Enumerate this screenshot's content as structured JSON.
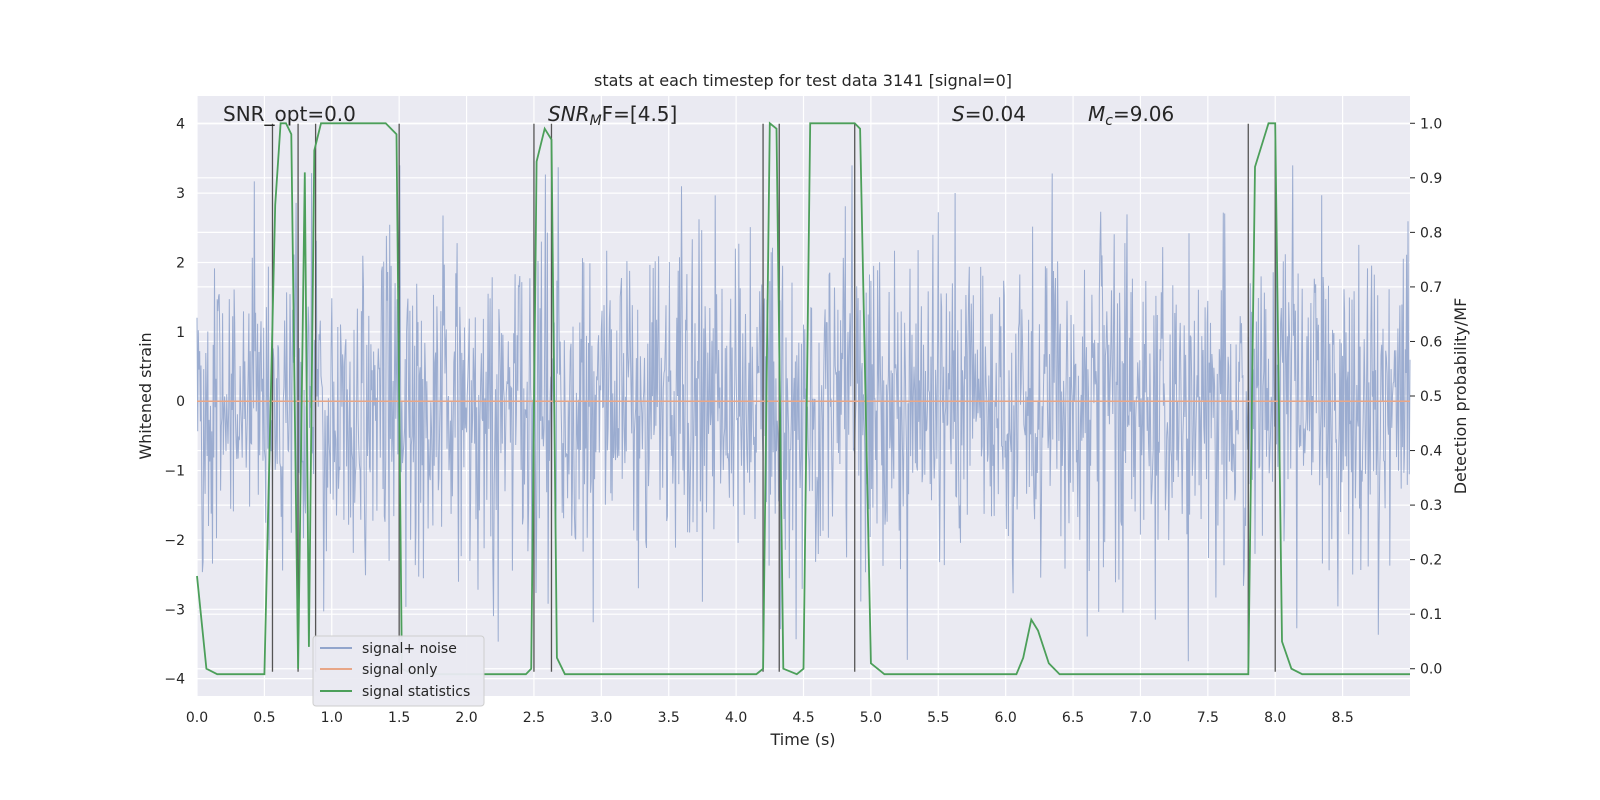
{
  "chart_data": {
    "type": "line",
    "title": "stats at each timestep for test data 3141 [signal=0]",
    "xlabel": "Time (s)",
    "ylabel": "Whitened strain",
    "y2label": "Detection probability/MF",
    "xlim": [
      0.0,
      9.0
    ],
    "ylim": [
      -4.25,
      4.4
    ],
    "y2lim": [
      -0.05,
      1.05
    ],
    "xticks": [
      "0.0",
      "0.5",
      "1.0",
      "1.5",
      "2.0",
      "2.5",
      "3.0",
      "3.5",
      "4.0",
      "4.5",
      "5.0",
      "5.5",
      "6.0",
      "6.5",
      "7.0",
      "7.5",
      "8.0",
      "8.5"
    ],
    "yticks": [
      "4",
      "3",
      "2",
      "1",
      "0",
      "−1",
      "−2",
      "−3",
      "−4"
    ],
    "y2ticks": [
      "1.0",
      "0.9",
      "0.8",
      "0.7",
      "0.6",
      "0.5",
      "0.4",
      "0.3",
      "0.2",
      "0.1",
      "0.0"
    ],
    "grid": true,
    "legend_position": "lower-left",
    "annotations": {
      "snr_opt": "SNR_opt=0.0",
      "snr_mf_symbol": "SNR",
      "snr_mf_sub": "M",
      "snr_mf_rest": "F=[4.5]",
      "s_symbol": "S",
      "s_value": "=0.04",
      "mc_symbol": "M",
      "mc_sub": "c",
      "mc_value": "=9.06"
    },
    "series": [
      {
        "name": "signal+ noise",
        "color": "#92a5cc",
        "kind": "noise",
        "approx_envelope": [
          -3.9,
          3.4
        ]
      },
      {
        "name": "signal only",
        "color": "#e8a687",
        "kind": "flat",
        "values_y": 0.0
      },
      {
        "name": "signal statistics",
        "color": "#4c9f5a",
        "x": [
          0.0,
          0.07,
          0.15,
          0.3,
          0.5,
          0.58,
          0.62,
          0.66,
          0.7,
          0.75,
          0.8,
          0.83,
          0.87,
          0.92,
          0.96,
          1.0,
          1.2,
          1.4,
          1.48,
          1.52,
          1.6,
          2.0,
          2.3,
          2.44,
          2.48,
          2.52,
          2.58,
          2.63,
          2.67,
          2.73,
          3.0,
          4.0,
          4.15,
          4.2,
          4.25,
          4.3,
          4.35,
          4.45,
          4.5,
          4.55,
          4.7,
          4.88,
          4.92,
          4.96,
          5.0,
          5.05,
          5.1,
          6.0,
          6.08,
          6.13,
          6.19,
          6.24,
          6.32,
          6.4,
          7.0,
          7.8,
          7.85,
          7.95,
          8.0,
          8.05,
          8.12,
          8.2,
          8.5,
          9.0
        ],
        "y": [
          0.17,
          0.0,
          -0.01,
          -0.01,
          -0.01,
          0.85,
          1.0,
          1.0,
          0.98,
          0.0,
          0.91,
          0.04,
          0.95,
          1.0,
          1.0,
          1.0,
          1.0,
          1.0,
          0.98,
          0.0,
          -0.01,
          -0.01,
          -0.01,
          -0.01,
          0.0,
          0.93,
          0.99,
          0.97,
          0.02,
          -0.01,
          -0.01,
          -0.01,
          -0.01,
          0.0,
          1.0,
          0.99,
          0.0,
          -0.01,
          0.0,
          1.0,
          1.0,
          1.0,
          0.99,
          0.5,
          0.01,
          0.0,
          -0.01,
          -0.01,
          -0.01,
          0.02,
          0.09,
          0.07,
          0.01,
          -0.01,
          -0.01,
          -0.01,
          0.92,
          1.0,
          1.0,
          0.05,
          0.0,
          -0.01,
          -0.01,
          -0.01
        ]
      }
    ],
    "vertical_lines_x": [
      0.56,
      0.75,
      0.88,
      1.5,
      2.5,
      2.63,
      4.2,
      4.32,
      4.88,
      7.8,
      8.0
    ],
    "colors": {
      "plot_background": "#eaeaf2",
      "grid": "#ffffff",
      "noise": "#92a5cc",
      "signal_only": "#e8a687",
      "statistics": "#4c9f5a",
      "vlines": "#555555"
    }
  }
}
